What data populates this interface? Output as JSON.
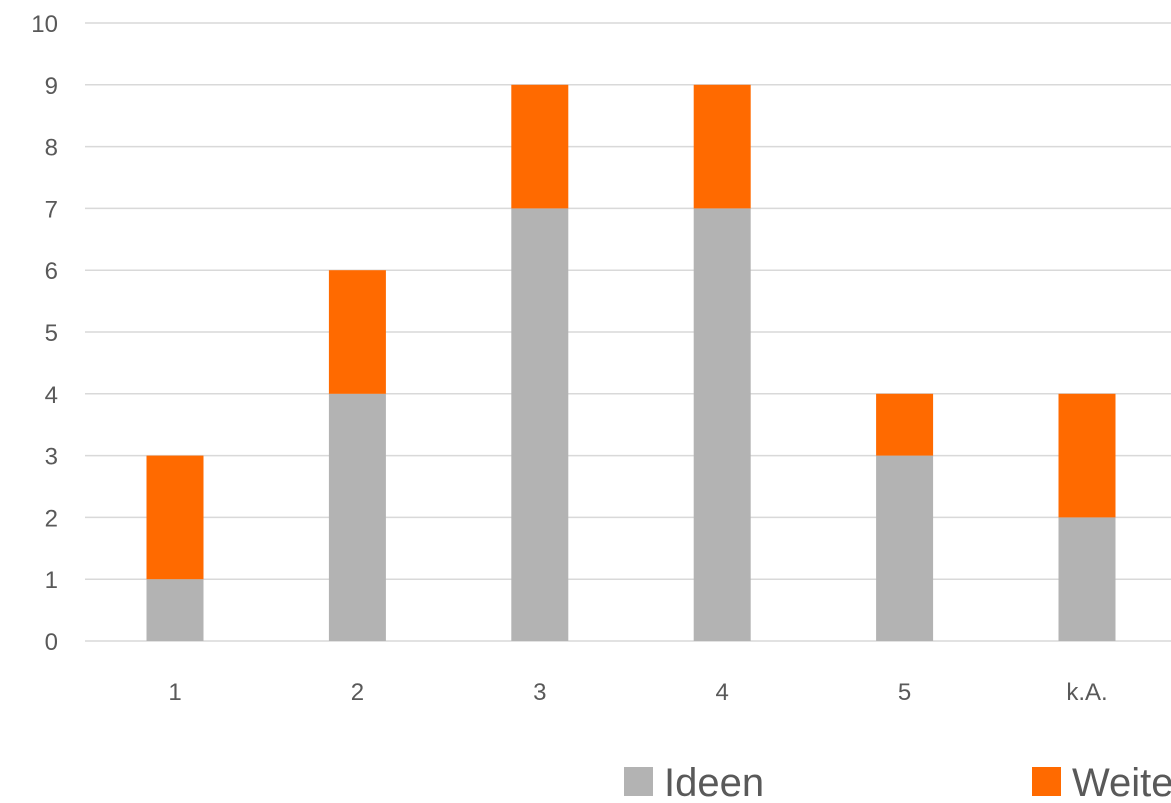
{
  "chart_data": {
    "type": "bar",
    "stacked": true,
    "categories": [
      "1",
      "2",
      "3",
      "4",
      "5",
      "k.A."
    ],
    "series": [
      {
        "name": "Ideen",
        "values": [
          1,
          4,
          7,
          7,
          3,
          2
        ],
        "color": "#b3b3b3"
      },
      {
        "name": "Weiterentwicklung",
        "values": [
          2,
          2,
          2,
          2,
          1,
          2
        ],
        "color": "#ff6a00"
      }
    ],
    "y_ticks": [
      "0",
      "1",
      "2",
      "3",
      "4",
      "5",
      "6",
      "7",
      "8",
      "9",
      "10"
    ],
    "ylim": [
      0,
      10
    ],
    "grid": true,
    "grid_color": "#d9d9d9",
    "legend_placement": "bottom"
  }
}
